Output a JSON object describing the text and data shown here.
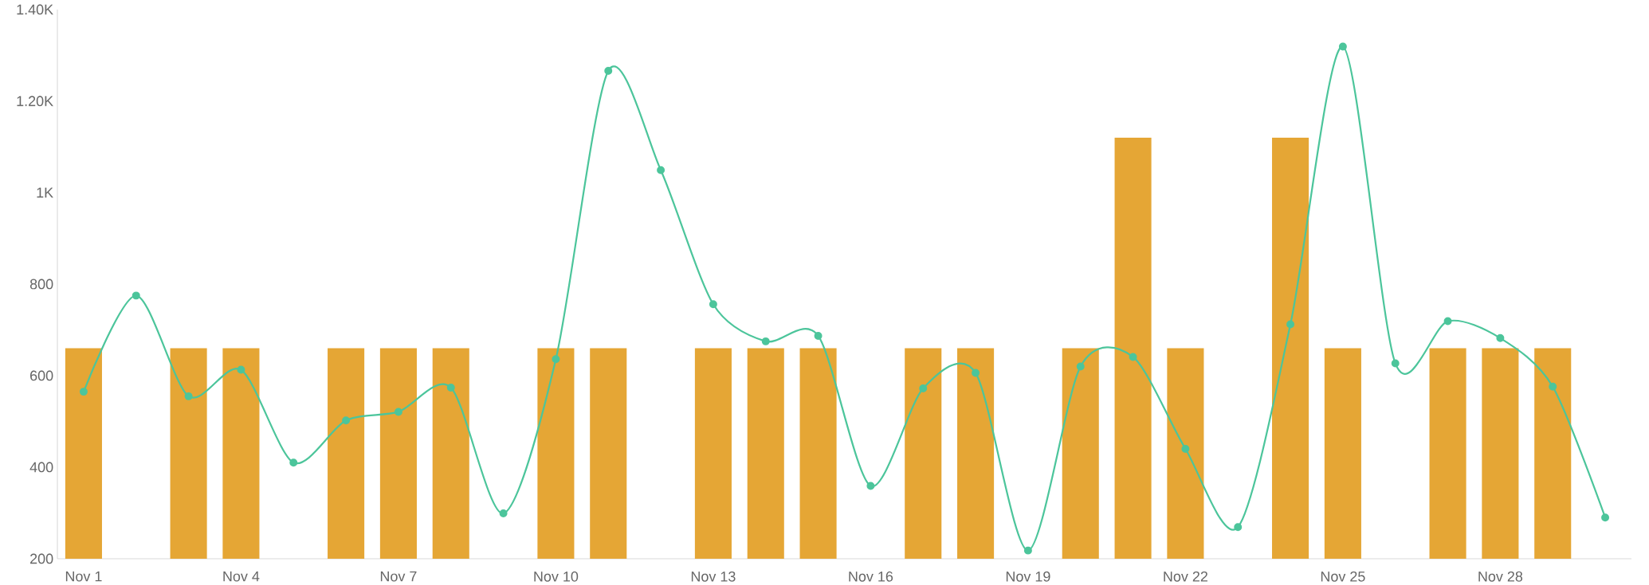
{
  "chart_data": {
    "type": "bar",
    "categories": [
      "Nov 1",
      null,
      null,
      "Nov 4",
      null,
      null,
      "Nov 7",
      null,
      null,
      "Nov 10",
      null,
      null,
      "Nov 13",
      null,
      null,
      "Nov 16",
      null,
      null,
      "Nov 19",
      null,
      null,
      "Nov 22",
      null,
      null,
      "Nov 25",
      null,
      null,
      "Nov 28",
      null,
      null
    ],
    "series": [
      {
        "color": "#e5a635",
        "values": [
          660,
          null,
          660,
          660,
          null,
          660,
          660,
          660,
          null,
          660,
          660,
          null,
          660,
          660,
          660,
          null,
          660,
          660,
          null,
          660,
          1120,
          660,
          null,
          1120,
          660,
          null,
          660,
          660,
          660,
          null
        ]
      },
      {
        "type": "line",
        "color": "#4cc59b",
        "marker": "circle",
        "values": [
          565,
          775,
          555,
          613,
          410,
          502,
          521,
          574,
          299,
          636,
          1266,
          1049,
          756,
          675,
          687,
          359,
          572,
          606,
          218,
          620,
          641,
          440,
          269,
          712,
          1319,
          627,
          719,
          682,
          576,
          290
        ]
      }
    ],
    "ylim": [
      200,
      1400
    ],
    "yticks": [
      200,
      400,
      600,
      800,
      {
        "value": 1000,
        "label": "1K"
      },
      {
        "value": 1200,
        "label": "1.20K"
      },
      {
        "value": 1400,
        "label": "1.40K"
      }
    ],
    "grid": false,
    "legend": false
  }
}
